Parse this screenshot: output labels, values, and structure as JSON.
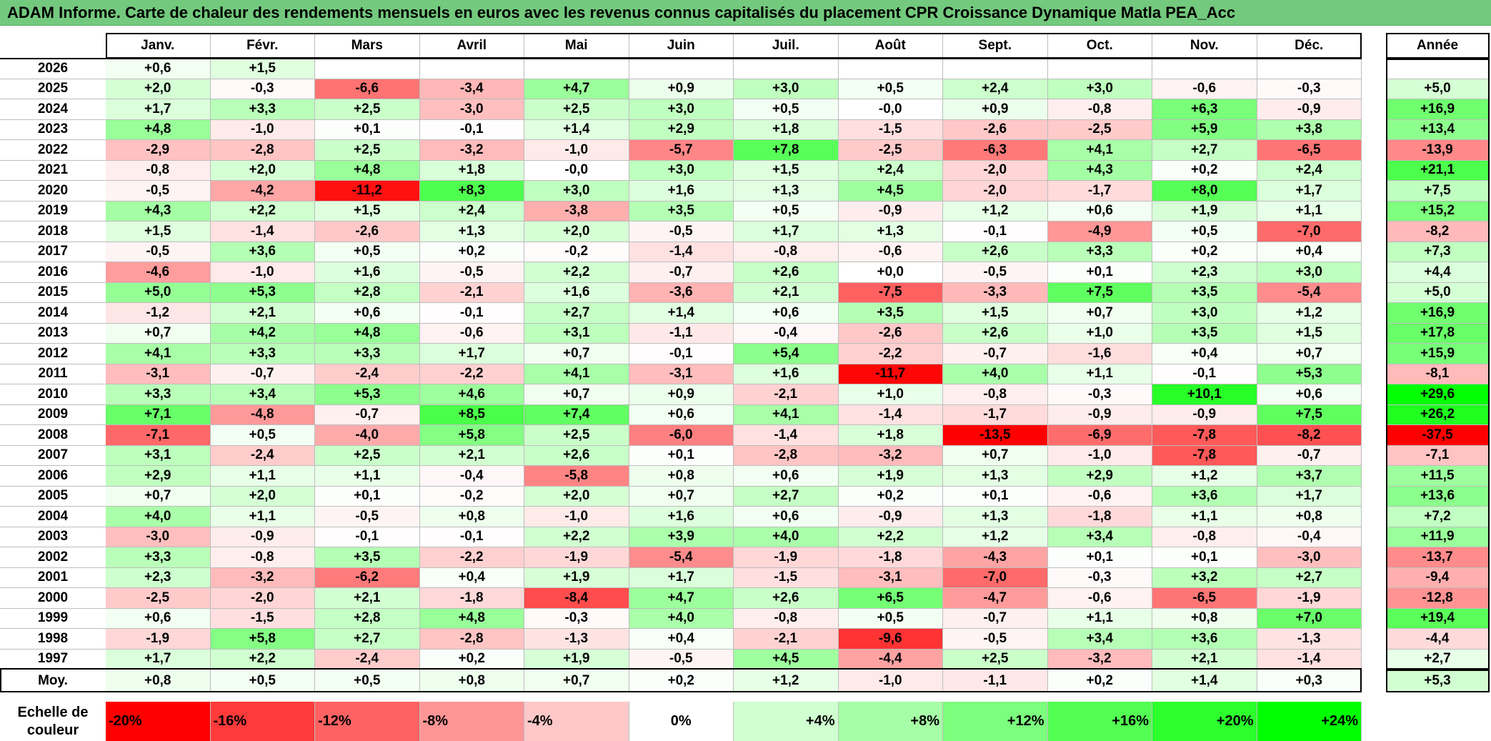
{
  "title": "ADAM Informe. Carte de chaleur des rendements mensuels en euros avec les revenus connus capitalisés du placement CPR Croissance Dynamique Matla PEA_Acc",
  "scale_label": "Echelle de couleur",
  "chart_data": {
    "type": "heatmap",
    "title": "ADAM Informe. Carte de chaleur des rendements mensuels en euros avec les revenus connus capitalisés du placement CPR Croissance Dynamique Matla PEA_Acc",
    "columns": [
      "Janv.",
      "Févr.",
      "Mars",
      "Avril",
      "Mai",
      "Juin",
      "Juil.",
      "Août",
      "Sept.",
      "Oct.",
      "Nov.",
      "Déc."
    ],
    "annual_label": "Année",
    "average_label": "Moy.",
    "rows": [
      {
        "year": "2026",
        "values": [
          "+0,6",
          "+1,5",
          "",
          "",
          "",
          "",
          "",
          "",
          "",
          "",
          "",
          ""
        ],
        "annual": ""
      },
      {
        "year": "2025",
        "values": [
          "+2,0",
          "-0,3",
          "-6,6",
          "-3,4",
          "+4,7",
          "+0,9",
          "+3,0",
          "+0,5",
          "+2,4",
          "+3,0",
          "-0,6",
          "-0,3"
        ],
        "annual": "+5,0"
      },
      {
        "year": "2024",
        "values": [
          "+1,7",
          "+3,3",
          "+2,5",
          "-3,0",
          "+2,5",
          "+3,0",
          "+0,5",
          "-0,0",
          "+0,9",
          "-0,8",
          "+6,3",
          "-0,9"
        ],
        "annual": "+16,9"
      },
      {
        "year": "2023",
        "values": [
          "+4,8",
          "-1,0",
          "+0,1",
          "-0,1",
          "+1,4",
          "+2,9",
          "+1,8",
          "-1,5",
          "-2,6",
          "-2,5",
          "+5,9",
          "+3,8"
        ],
        "annual": "+13,4"
      },
      {
        "year": "2022",
        "values": [
          "-2,9",
          "-2,8",
          "+2,5",
          "-3,2",
          "-1,0",
          "-5,7",
          "+7,8",
          "-2,5",
          "-6,3",
          "+4,1",
          "+2,7",
          "-6,5"
        ],
        "annual": "-13,9"
      },
      {
        "year": "2021",
        "values": [
          "-0,8",
          "+2,0",
          "+4,8",
          "+1,8",
          "-0,0",
          "+3,0",
          "+1,5",
          "+2,4",
          "-2,0",
          "+4,3",
          "+0,2",
          "+2,4"
        ],
        "annual": "+21,1"
      },
      {
        "year": "2020",
        "values": [
          "-0,5",
          "-4,2",
          "-11,2",
          "+8,3",
          "+3,0",
          "+1,6",
          "+1,3",
          "+4,5",
          "-2,0",
          "-1,7",
          "+8,0",
          "+1,7"
        ],
        "annual": "+7,5"
      },
      {
        "year": "2019",
        "values": [
          "+4,3",
          "+2,2",
          "+1,5",
          "+2,4",
          "-3,8",
          "+3,5",
          "+0,5",
          "-0,9",
          "+1,2",
          "+0,6",
          "+1,9",
          "+1,1"
        ],
        "annual": "+15,2"
      },
      {
        "year": "2018",
        "values": [
          "+1,5",
          "-1,4",
          "-2,6",
          "+1,3",
          "+2,0",
          "-0,5",
          "+1,7",
          "+1,3",
          "-0,1",
          "-4,9",
          "+0,5",
          "-7,0"
        ],
        "annual": "-8,2"
      },
      {
        "year": "2017",
        "values": [
          "-0,5",
          "+3,6",
          "+0,5",
          "+0,2",
          "-0,2",
          "-1,4",
          "-0,8",
          "-0,6",
          "+2,6",
          "+3,3",
          "+0,2",
          "+0,4"
        ],
        "annual": "+7,3"
      },
      {
        "year": "2016",
        "values": [
          "-4,6",
          "-1,0",
          "+1,6",
          "-0,5",
          "+2,2",
          "-0,7",
          "+2,6",
          "+0,0",
          "-0,5",
          "+0,1",
          "+2,3",
          "+3,0"
        ],
        "annual": "+4,4"
      },
      {
        "year": "2015",
        "values": [
          "+5,0",
          "+5,3",
          "+2,8",
          "-2,1",
          "+1,6",
          "-3,6",
          "+2,1",
          "-7,5",
          "-3,3",
          "+7,5",
          "+3,5",
          "-5,4"
        ],
        "annual": "+5,0"
      },
      {
        "year": "2014",
        "values": [
          "-1,2",
          "+2,1",
          "+0,6",
          "-0,1",
          "+2,7",
          "+1,4",
          "+0,6",
          "+3,5",
          "+1,5",
          "+0,7",
          "+3,0",
          "+1,2"
        ],
        "annual": "+16,9"
      },
      {
        "year": "2013",
        "values": [
          "+0,7",
          "+4,2",
          "+4,8",
          "-0,6",
          "+3,1",
          "-1,1",
          "-0,4",
          "-2,6",
          "+2,6",
          "+1,0",
          "+3,5",
          "+1,5"
        ],
        "annual": "+17,8"
      },
      {
        "year": "2012",
        "values": [
          "+4,1",
          "+3,3",
          "+3,3",
          "+1,7",
          "+0,7",
          "-0,1",
          "+5,4",
          "-2,2",
          "-0,7",
          "-1,6",
          "+0,4",
          "+0,7"
        ],
        "annual": "+15,9"
      },
      {
        "year": "2011",
        "values": [
          "-3,1",
          "-0,7",
          "-2,4",
          "-2,2",
          "+4,1",
          "-3,1",
          "+1,6",
          "-11,7",
          "+4,0",
          "+1,1",
          "-0,1",
          "+5,3"
        ],
        "annual": "-8,1"
      },
      {
        "year": "2010",
        "values": [
          "+3,3",
          "+3,4",
          "+5,3",
          "+4,6",
          "+0,7",
          "+0,9",
          "-2,1",
          "+1,0",
          "-0,8",
          "-0,3",
          "+10,1",
          "+0,6"
        ],
        "annual": "+29,6"
      },
      {
        "year": "2009",
        "values": [
          "+7,1",
          "-4,8",
          "-0,7",
          "+8,5",
          "+7,4",
          "+0,6",
          "+4,1",
          "-1,4",
          "-1,7",
          "-0,9",
          "-0,9",
          "+7,5"
        ],
        "annual": "+26,2"
      },
      {
        "year": "2008",
        "values": [
          "-7,1",
          "+0,5",
          "-4,0",
          "+5,8",
          "+2,5",
          "-6,0",
          "-1,4",
          "+1,8",
          "-13,5",
          "-6,9",
          "-7,8",
          "-8,2"
        ],
        "annual": "-37,5"
      },
      {
        "year": "2007",
        "values": [
          "+3,1",
          "-2,4",
          "+2,5",
          "+2,1",
          "+2,6",
          "+0,1",
          "-2,8",
          "-3,2",
          "+0,7",
          "-1,0",
          "-7,8",
          "-0,7"
        ],
        "annual": "-7,1"
      },
      {
        "year": "2006",
        "values": [
          "+2,9",
          "+1,1",
          "+1,1",
          "-0,4",
          "-5,8",
          "+0,8",
          "+0,6",
          "+1,9",
          "+1,3",
          "+2,9",
          "+1,2",
          "+3,7"
        ],
        "annual": "+11,5"
      },
      {
        "year": "2005",
        "values": [
          "+0,7",
          "+2,0",
          "+0,1",
          "-0,2",
          "+2,0",
          "+0,7",
          "+2,7",
          "+0,2",
          "+0,1",
          "-0,6",
          "+3,6",
          "+1,7"
        ],
        "annual": "+13,6"
      },
      {
        "year": "2004",
        "values": [
          "+4,0",
          "+1,1",
          "-0,5",
          "+0,8",
          "-1,0",
          "+1,6",
          "+0,6",
          "-0,9",
          "+1,3",
          "-1,8",
          "+1,1",
          "+0,8"
        ],
        "annual": "+7,2"
      },
      {
        "year": "2003",
        "values": [
          "-3,0",
          "-0,9",
          "-0,1",
          "-0,1",
          "+2,2",
          "+3,9",
          "+4,0",
          "+2,2",
          "+1,2",
          "+3,4",
          "-0,8",
          "-0,4"
        ],
        "annual": "+11,9"
      },
      {
        "year": "2002",
        "values": [
          "+3,3",
          "-0,8",
          "+3,5",
          "-2,2",
          "-1,9",
          "-5,4",
          "-1,9",
          "-1,8",
          "-4,3",
          "+0,1",
          "+0,1",
          "-3,0"
        ],
        "annual": "-13,7"
      },
      {
        "year": "2001",
        "values": [
          "+2,3",
          "-3,2",
          "-6,2",
          "+0,4",
          "+1,9",
          "+1,7",
          "-1,5",
          "-3,1",
          "-7,0",
          "-0,3",
          "+3,2",
          "+2,7"
        ],
        "annual": "-9,4"
      },
      {
        "year": "2000",
        "values": [
          "-2,5",
          "-2,0",
          "+2,1",
          "-1,8",
          "-8,4",
          "+4,7",
          "+2,6",
          "+6,5",
          "-4,7",
          "-0,6",
          "-6,5",
          "-1,9"
        ],
        "annual": "-12,8"
      },
      {
        "year": "1999",
        "values": [
          "+0,6",
          "-1,5",
          "+2,8",
          "+4,8",
          "-0,3",
          "+4,0",
          "-0,8",
          "+0,5",
          "-0,7",
          "+1,1",
          "+0,8",
          "+7,0"
        ],
        "annual": "+19,4"
      },
      {
        "year": "1998",
        "values": [
          "-1,9",
          "+5,8",
          "+2,7",
          "-2,8",
          "-1,3",
          "+0,4",
          "-2,1",
          "-9,6",
          "-0,5",
          "+3,4",
          "+3,6",
          "-1,3"
        ],
        "annual": "-4,4"
      },
      {
        "year": "1997",
        "values": [
          "+1,7",
          "+2,2",
          "-2,4",
          "+0,2",
          "+1,9",
          "-0,5",
          "+4,5",
          "-4,4",
          "+2,5",
          "-3,2",
          "+2,1",
          "-1,4"
        ],
        "annual": "+2,7"
      }
    ],
    "average": {
      "values": [
        "+0,8",
        "+0,5",
        "+0,5",
        "+0,8",
        "+0,7",
        "+0,2",
        "+1,2",
        "-1,0",
        "-1,1",
        "+0,2",
        "+1,4",
        "+0,3"
      ],
      "annual": "+5,3"
    },
    "color_scale": [
      {
        "label": "-20%",
        "value": -20,
        "color": "#ff0000"
      },
      {
        "label": "-16%",
        "value": -16,
        "color": "#ff3a3a"
      },
      {
        "label": "-12%",
        "value": -12,
        "color": "#ff6262"
      },
      {
        "label": "-8%",
        "value": -8,
        "color": "#ff9696"
      },
      {
        "label": "-4%",
        "value": -4,
        "color": "#ffc8c8"
      },
      {
        "label": "0%",
        "value": 0,
        "color": "#ffffff"
      },
      {
        "label": "+4%",
        "value": 4,
        "color": "#d0ffd0"
      },
      {
        "label": "+8%",
        "value": 8,
        "color": "#a6ffa6"
      },
      {
        "label": "+12%",
        "value": 12,
        "color": "#7cff7c"
      },
      {
        "label": "+16%",
        "value": 16,
        "color": "#52ff52"
      },
      {
        "label": "+20%",
        "value": 20,
        "color": "#2cff2c"
      },
      {
        "label": "+24%",
        "value": 24,
        "color": "#00ff00"
      }
    ]
  }
}
